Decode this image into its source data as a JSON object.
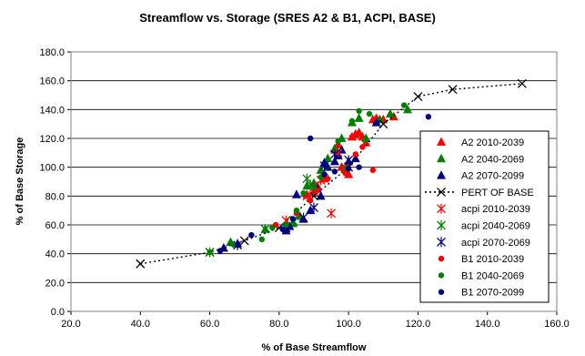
{
  "chart_data": {
    "type": "scatter",
    "title": "Streamflow vs. Storage (SRES A2 & B1, ACPI, BASE)",
    "xlabel": "% of Base Streamflow",
    "ylabel": "% of Base Storage",
    "xlim": [
      20,
      160
    ],
    "ylim": [
      0,
      180
    ],
    "xticks": [
      "20.0",
      "40.0",
      "60.0",
      "80.0",
      "100.0",
      "120.0",
      "140.0",
      "160.0"
    ],
    "yticks": [
      "0.0",
      "20.0",
      "40.0",
      "60.0",
      "80.0",
      "100.0",
      "120.0",
      "140.0",
      "160.0",
      "180.0"
    ],
    "grid": "horizontal",
    "legend_position": "right",
    "series": [
      {
        "name": "A2 2010-2039",
        "marker": "triangle",
        "color": "#ff0000",
        "points": [
          [
            88,
            81
          ],
          [
            90,
            83
          ],
          [
            91,
            87
          ],
          [
            93,
            92
          ],
          [
            96,
            112
          ],
          [
            98,
            100
          ],
          [
            100,
            95
          ],
          [
            101,
            121
          ],
          [
            102,
            123
          ],
          [
            103,
            124
          ],
          [
            104,
            121
          ],
          [
            105,
            117
          ],
          [
            107,
            133
          ],
          [
            108,
            134
          ],
          [
            110,
            133
          ],
          [
            113,
            135
          ]
        ]
      },
      {
        "name": "A2 2040-2069",
        "marker": "triangle",
        "color": "#008000",
        "points": [
          [
            66,
            48
          ],
          [
            76,
            57
          ],
          [
            84,
            61
          ],
          [
            86,
            66
          ],
          [
            88,
            87
          ],
          [
            90,
            89
          ],
          [
            92,
            98
          ],
          [
            94,
            106
          ],
          [
            96,
            113
          ],
          [
            98,
            120
          ],
          [
            101,
            131
          ],
          [
            103,
            134
          ],
          [
            105,
            120
          ],
          [
            109,
            133
          ],
          [
            112,
            137
          ],
          [
            117,
            140
          ]
        ]
      },
      {
        "name": "A2 2070-2099",
        "marker": "triangle",
        "color": "#000080",
        "points": [
          [
            64,
            44
          ],
          [
            68,
            47
          ],
          [
            82,
            56
          ],
          [
            83,
            59
          ],
          [
            85,
            81
          ],
          [
            87,
            64
          ],
          [
            89,
            70
          ],
          [
            91,
            85
          ],
          [
            92,
            80
          ],
          [
            93,
            103
          ],
          [
            94,
            100
          ],
          [
            96,
            104
          ],
          [
            97,
            108
          ],
          [
            98,
            112
          ],
          [
            100,
            104
          ],
          [
            102,
            106
          ],
          [
            108,
            131
          ]
        ]
      },
      {
        "name": "PERT OF BASE",
        "marker": "x",
        "color": "#000000",
        "line": "dotted",
        "points": [
          [
            40,
            33
          ],
          [
            60,
            41
          ],
          [
            70,
            49
          ],
          [
            80,
            58
          ],
          [
            90,
            80
          ],
          [
            100,
            100
          ],
          [
            110,
            130
          ],
          [
            120,
            149
          ],
          [
            130,
            154
          ],
          [
            150,
            158
          ]
        ]
      },
      {
        "name": "acpi 2010-2039",
        "marker": "star",
        "color": "#ff0000",
        "points": [
          [
            82,
            63
          ],
          [
            88,
            80
          ],
          [
            90,
            86
          ],
          [
            92,
            91
          ],
          [
            95,
            68
          ],
          [
            97,
            110
          ],
          [
            99,
            100
          ]
        ]
      },
      {
        "name": "acpi 2040-2069",
        "marker": "star",
        "color": "#008000",
        "points": [
          [
            60,
            41
          ],
          [
            76,
            57
          ],
          [
            84,
            63
          ],
          [
            88,
            92
          ],
          [
            89,
            88
          ],
          [
            93,
            97
          ],
          [
            99,
            99
          ]
        ]
      },
      {
        "name": "acpi 2070-2069",
        "marker": "star",
        "color": "#000080",
        "points": [
          [
            68,
            46
          ],
          [
            82,
            58
          ],
          [
            87,
            65
          ],
          [
            90,
            72
          ],
          [
            93,
            101
          ],
          [
            96,
            109
          ],
          [
            100,
            105
          ]
        ]
      },
      {
        "name": "B1 2010-2039",
        "marker": "circle",
        "color": "#ff0000",
        "points": [
          [
            79,
            60
          ],
          [
            85,
            68
          ],
          [
            89,
            77
          ],
          [
            91,
            84
          ],
          [
            94,
            92
          ],
          [
            97,
            115
          ],
          [
            99,
            96
          ],
          [
            101,
            121
          ],
          [
            102,
            109
          ],
          [
            104,
            114
          ],
          [
            107,
            98
          ]
        ]
      },
      {
        "name": "B1 2040-2069",
        "marker": "circle",
        "color": "#008000",
        "points": [
          [
            60,
            41
          ],
          [
            67,
            46
          ],
          [
            75,
            50
          ],
          [
            78,
            58
          ],
          [
            82,
            60
          ],
          [
            85,
            70
          ],
          [
            87,
            82
          ],
          [
            90,
            86
          ],
          [
            92,
            93
          ],
          [
            97,
            118
          ],
          [
            101,
            132
          ],
          [
            103,
            139
          ],
          [
            106,
            137
          ],
          [
            116,
            143
          ]
        ]
      },
      {
        "name": "B1 2070-2099",
        "marker": "circle",
        "color": "#000080",
        "points": [
          [
            63,
            42
          ],
          [
            68,
            46
          ],
          [
            72,
            53
          ],
          [
            81,
            57
          ],
          [
            84,
            64
          ],
          [
            89,
            120
          ],
          [
            93,
            95
          ],
          [
            96,
            97
          ],
          [
            100,
            99
          ],
          [
            103,
            100
          ],
          [
            108,
            131
          ],
          [
            123,
            135
          ]
        ]
      }
    ]
  }
}
